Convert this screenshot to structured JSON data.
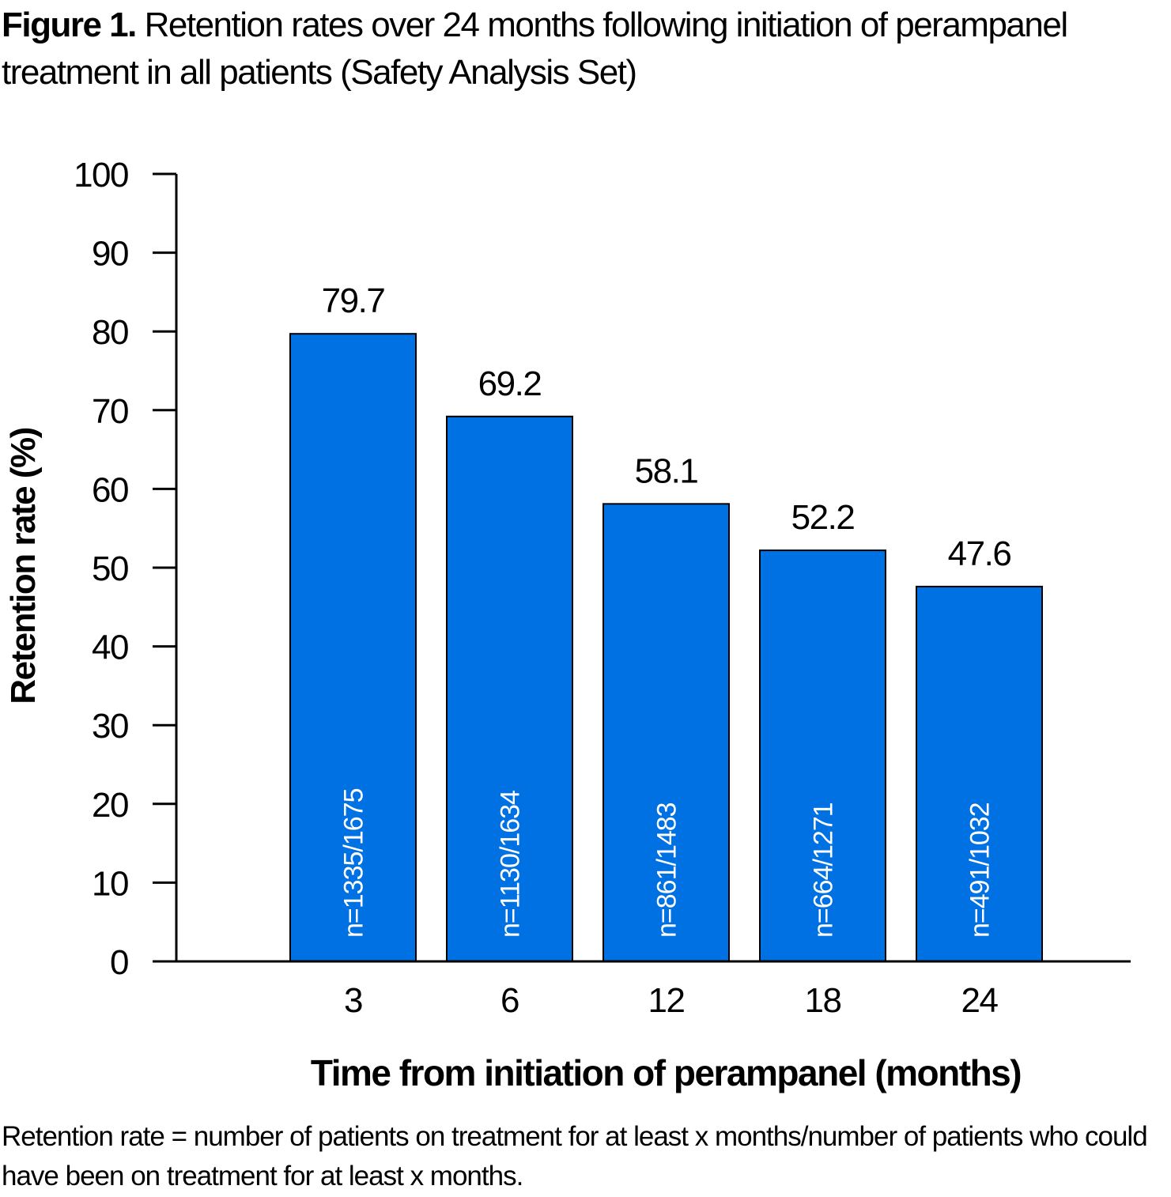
{
  "figure": {
    "label": "Figure 1.",
    "caption": "Retention rates over 24 months following initiation of perampanel treatment in all patients (Safety Analysis Set)",
    "footnote": "Retention rate = number of patients on treatment for at least x months/number of patients who could have been on treatment for at least x months."
  },
  "chart_data": {
    "type": "bar",
    "title": "",
    "xlabel": "Time from initiation of perampanel (months)",
    "ylabel": "Retention rate (%)",
    "categories": [
      "3",
      "6",
      "12",
      "18",
      "24"
    ],
    "values": [
      79.7,
      69.2,
      58.1,
      52.2,
      47.6
    ],
    "data_labels": [
      "79.7",
      "69.2",
      "58.1",
      "52.2",
      "47.6"
    ],
    "bar_annotations": [
      "n=1335/1675",
      "n=1130/1634",
      "n=861/1483",
      "n=664/1271",
      "n=491/1032"
    ],
    "ylim": [
      0,
      100
    ],
    "yticks": [
      0,
      10,
      20,
      30,
      40,
      50,
      60,
      70,
      80,
      90,
      100
    ],
    "grid": false,
    "legend": "none",
    "bar_color": "#0071E3"
  }
}
